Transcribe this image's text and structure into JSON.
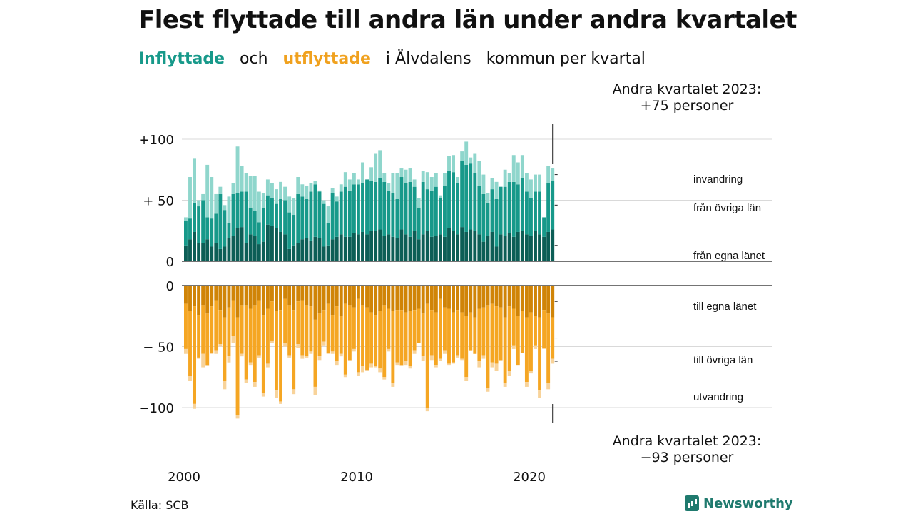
{
  "header": {
    "title": "Flest flyttade till andra län under andra kvartalet",
    "subtitle_words": [
      "Inflyttade",
      "och",
      "utflyttade",
      "i Älvdalens",
      "kommun per kvartal"
    ]
  },
  "annotations": {
    "top_line1": "Andra kvartalet 2023:",
    "top_line2": "+75 personer",
    "bottom_line1": "Andra kvartalet 2023:",
    "bottom_line2": "−93 personer"
  },
  "footer": {
    "source": "Källa: SCB",
    "brand": "Newsworthy"
  },
  "colors": {
    "in_dark": "#0c5e56",
    "in_mid": "#17998a",
    "in_light": "#8fd6cc",
    "out_dark": "#d08407",
    "out_mid": "#f5a623",
    "out_light": "#f8d39a",
    "grid": "#d9d9d9",
    "axis": "#222222"
  },
  "chart_data": {
    "type": "bar",
    "stacked": true,
    "x_start": 2000,
    "x_ticks": [
      "2000",
      "2010",
      "2020"
    ],
    "inflow": {
      "ylim": [
        0,
        100
      ],
      "y_ticks": [
        "0",
        "+ 50",
        "+100"
      ],
      "series_labels": [
        "från egna länet",
        "från övriga län",
        "invandring"
      ],
      "local": [
        13,
        18,
        24,
        15,
        15,
        18,
        12,
        15,
        10,
        12,
        19,
        21,
        27,
        28,
        15,
        22,
        21,
        14,
        16,
        30,
        29,
        27,
        24,
        22,
        10,
        13,
        15,
        18,
        19,
        17,
        20,
        19,
        12,
        13,
        18,
        20,
        22,
        20,
        20,
        23,
        22,
        24,
        22,
        25,
        25,
        26,
        21,
        22,
        20,
        19,
        26,
        22,
        20,
        25,
        18,
        22,
        25,
        20,
        21,
        22,
        20,
        27,
        25,
        22,
        28,
        24,
        26,
        25,
        22,
        16,
        21,
        24,
        12,
        22,
        21,
        23,
        20,
        24,
        25,
        22,
        21,
        25,
        22,
        20,
        24,
        26
      ],
      "other": [
        20,
        17,
        24,
        30,
        35,
        18,
        23,
        24,
        45,
        30,
        12,
        34,
        29,
        29,
        42,
        22,
        20,
        18,
        28,
        24,
        23,
        20,
        27,
        28,
        30,
        25,
        40,
        35,
        32,
        40,
        43,
        38,
        35,
        18,
        38,
        29,
        35,
        41,
        38,
        40,
        41,
        40,
        45,
        41,
        40,
        42,
        44,
        36,
        36,
        32,
        43,
        42,
        45,
        36,
        26,
        43,
        34,
        38,
        40,
        30,
        42,
        47,
        48,
        42,
        54,
        55,
        54,
        47,
        40,
        39,
        27,
        35,
        39,
        39,
        40,
        42,
        45,
        39,
        43,
        35,
        31,
        32,
        35,
        16,
        40,
        40
      ],
      "immig": [
        3,
        34,
        36,
        5,
        5,
        43,
        34,
        16,
        6,
        4,
        22,
        9,
        38,
        21,
        15,
        26,
        29,
        25,
        12,
        13,
        12,
        12,
        14,
        11,
        13,
        14,
        14,
        10,
        11,
        7,
        3,
        1,
        3,
        14,
        4,
        4,
        6,
        12,
        9,
        9,
        4,
        17,
        0,
        11,
        23,
        23,
        7,
        6,
        16,
        21,
        7,
        11,
        11,
        6,
        8,
        9,
        14,
        11,
        11,
        2,
        10,
        12,
        14,
        5,
        8,
        19,
        5,
        16,
        20,
        16,
        8,
        9,
        14,
        0,
        14,
        7,
        22,
        18,
        19,
        15,
        15,
        14,
        14,
        0,
        14,
        10
      ]
    },
    "outflow": {
      "ylim": [
        -110,
        0
      ],
      "y_ticks": [
        "0",
        "− 50",
        "−100"
      ],
      "series_labels": [
        "till egna länet",
        "till övriga län",
        "utvandring"
      ],
      "local": [
        15,
        21,
        17,
        24,
        16,
        23,
        17,
        12,
        20,
        26,
        18,
        12,
        26,
        16,
        16,
        19,
        16,
        12,
        24,
        19,
        13,
        21,
        20,
        11,
        16,
        20,
        13,
        12,
        16,
        17,
        28,
        23,
        20,
        15,
        24,
        17,
        25,
        15,
        16,
        18,
        11,
        16,
        18,
        22,
        24,
        21,
        16,
        19,
        21,
        20,
        20,
        22,
        21,
        20,
        19,
        23,
        15,
        20,
        22,
        11,
        18,
        19,
        22,
        20,
        22,
        25,
        22,
        26,
        19,
        18,
        16,
        15,
        17,
        18,
        26,
        17,
        19,
        25,
        21,
        26,
        22,
        25,
        26,
        20,
        23,
        26
      ],
      "other": [
        37,
        53,
        80,
        35,
        40,
        42,
        38,
        41,
        28,
        52,
        40,
        29,
        80,
        40,
        61,
        44,
        63,
        45,
        64,
        45,
        32,
        65,
        75,
        36,
        41,
        65,
        35,
        45,
        42,
        37,
        55,
        35,
        26,
        40,
        30,
        45,
        31,
        58,
        45,
        34,
        60,
        50,
        51,
        42,
        42,
        47,
        59,
        33,
        59,
        43,
        45,
        40,
        45,
        33,
        28,
        35,
        85,
        37,
        43,
        49,
        35,
        45,
        41,
        37,
        38,
        50,
        31,
        30,
        43,
        39,
        68,
        48,
        47,
        43,
        54,
        53,
        30,
        40,
        34,
        53,
        48,
        24,
        60,
        31,
        57,
        34
      ],
      "emig": [
        4,
        4,
        4,
        1,
        11,
        1,
        1,
        3,
        2,
        7,
        5,
        6,
        3,
        2,
        3,
        2,
        4,
        2,
        3,
        3,
        2,
        6,
        2,
        3,
        2,
        4,
        3,
        3,
        1,
        2,
        7,
        3,
        3,
        1,
        2,
        3,
        2,
        2,
        1,
        2,
        3,
        5,
        1,
        3,
        1,
        3,
        2,
        2,
        3,
        2,
        1,
        3,
        2,
        3,
        0,
        4,
        3,
        4,
        2,
        2,
        3,
        1,
        1,
        2,
        1,
        3,
        0,
        0,
        5,
        3,
        3,
        4,
        6,
        1,
        3,
        4,
        3,
        0,
        0,
        4,
        2,
        3,
        6,
        1,
        5,
        4
      ]
    }
  }
}
